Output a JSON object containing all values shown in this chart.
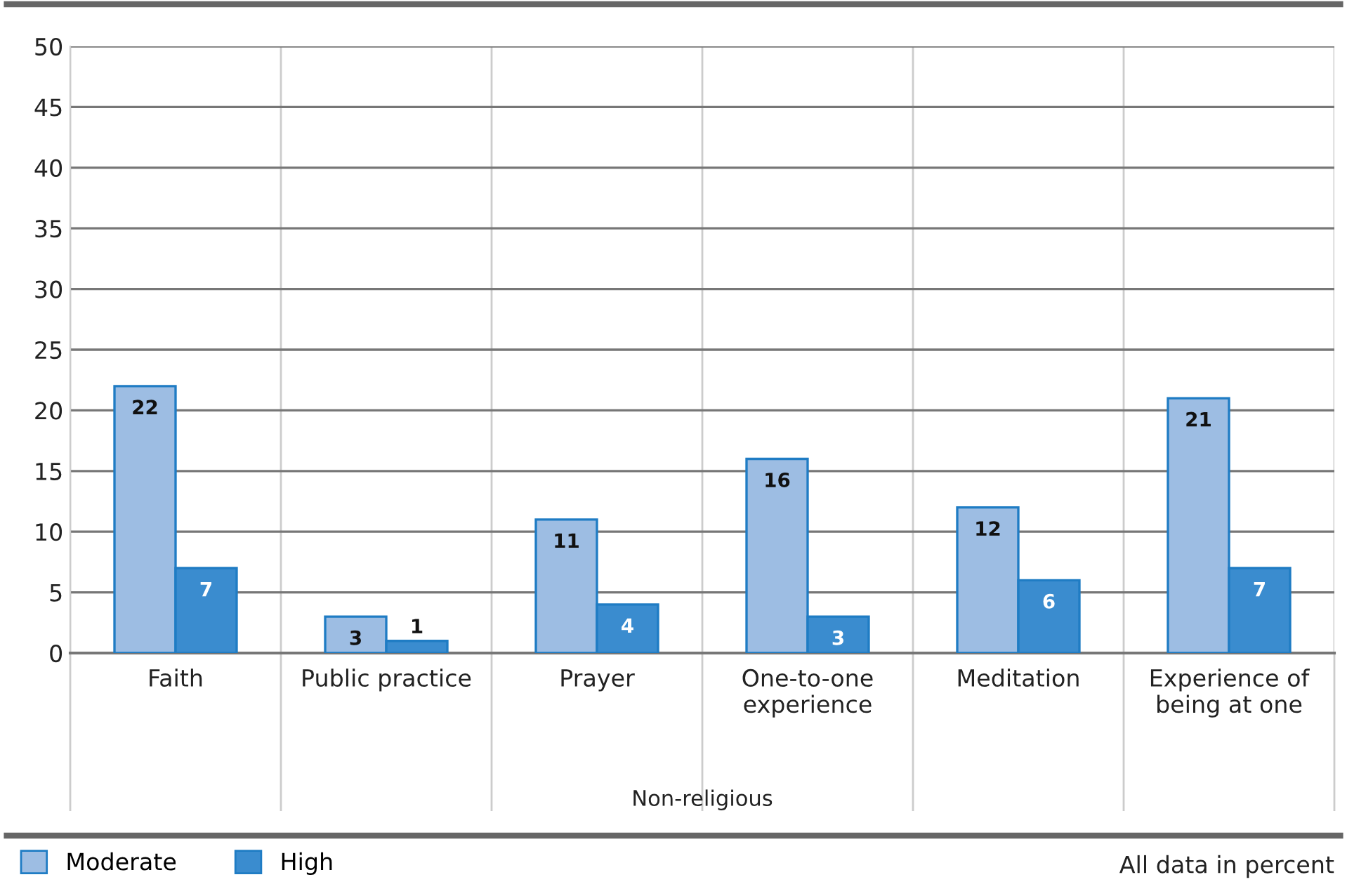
{
  "chart_data": {
    "type": "bar",
    "xlabel": "Non-religious",
    "categories": [
      "Faith",
      "Public practice",
      "Prayer",
      "One-to-one\nexperience",
      "Meditation",
      "Experience of\nbeing at one"
    ],
    "series": [
      {
        "name": "Moderate",
        "color": "#9dbde3",
        "values": [
          22,
          3,
          11,
          16,
          12,
          21
        ]
      },
      {
        "name": "High",
        "color": "#3a8ccf",
        "values": [
          7,
          1,
          4,
          3,
          6,
          7
        ]
      }
    ],
    "ylim": [
      0,
      50
    ],
    "yticks": [
      0,
      5,
      10,
      15,
      20,
      25,
      30,
      35,
      40,
      45,
      50
    ],
    "grid": "y",
    "legend": "bottom",
    "data_labels": true,
    "annotations": [
      "All data in percent"
    ]
  }
}
